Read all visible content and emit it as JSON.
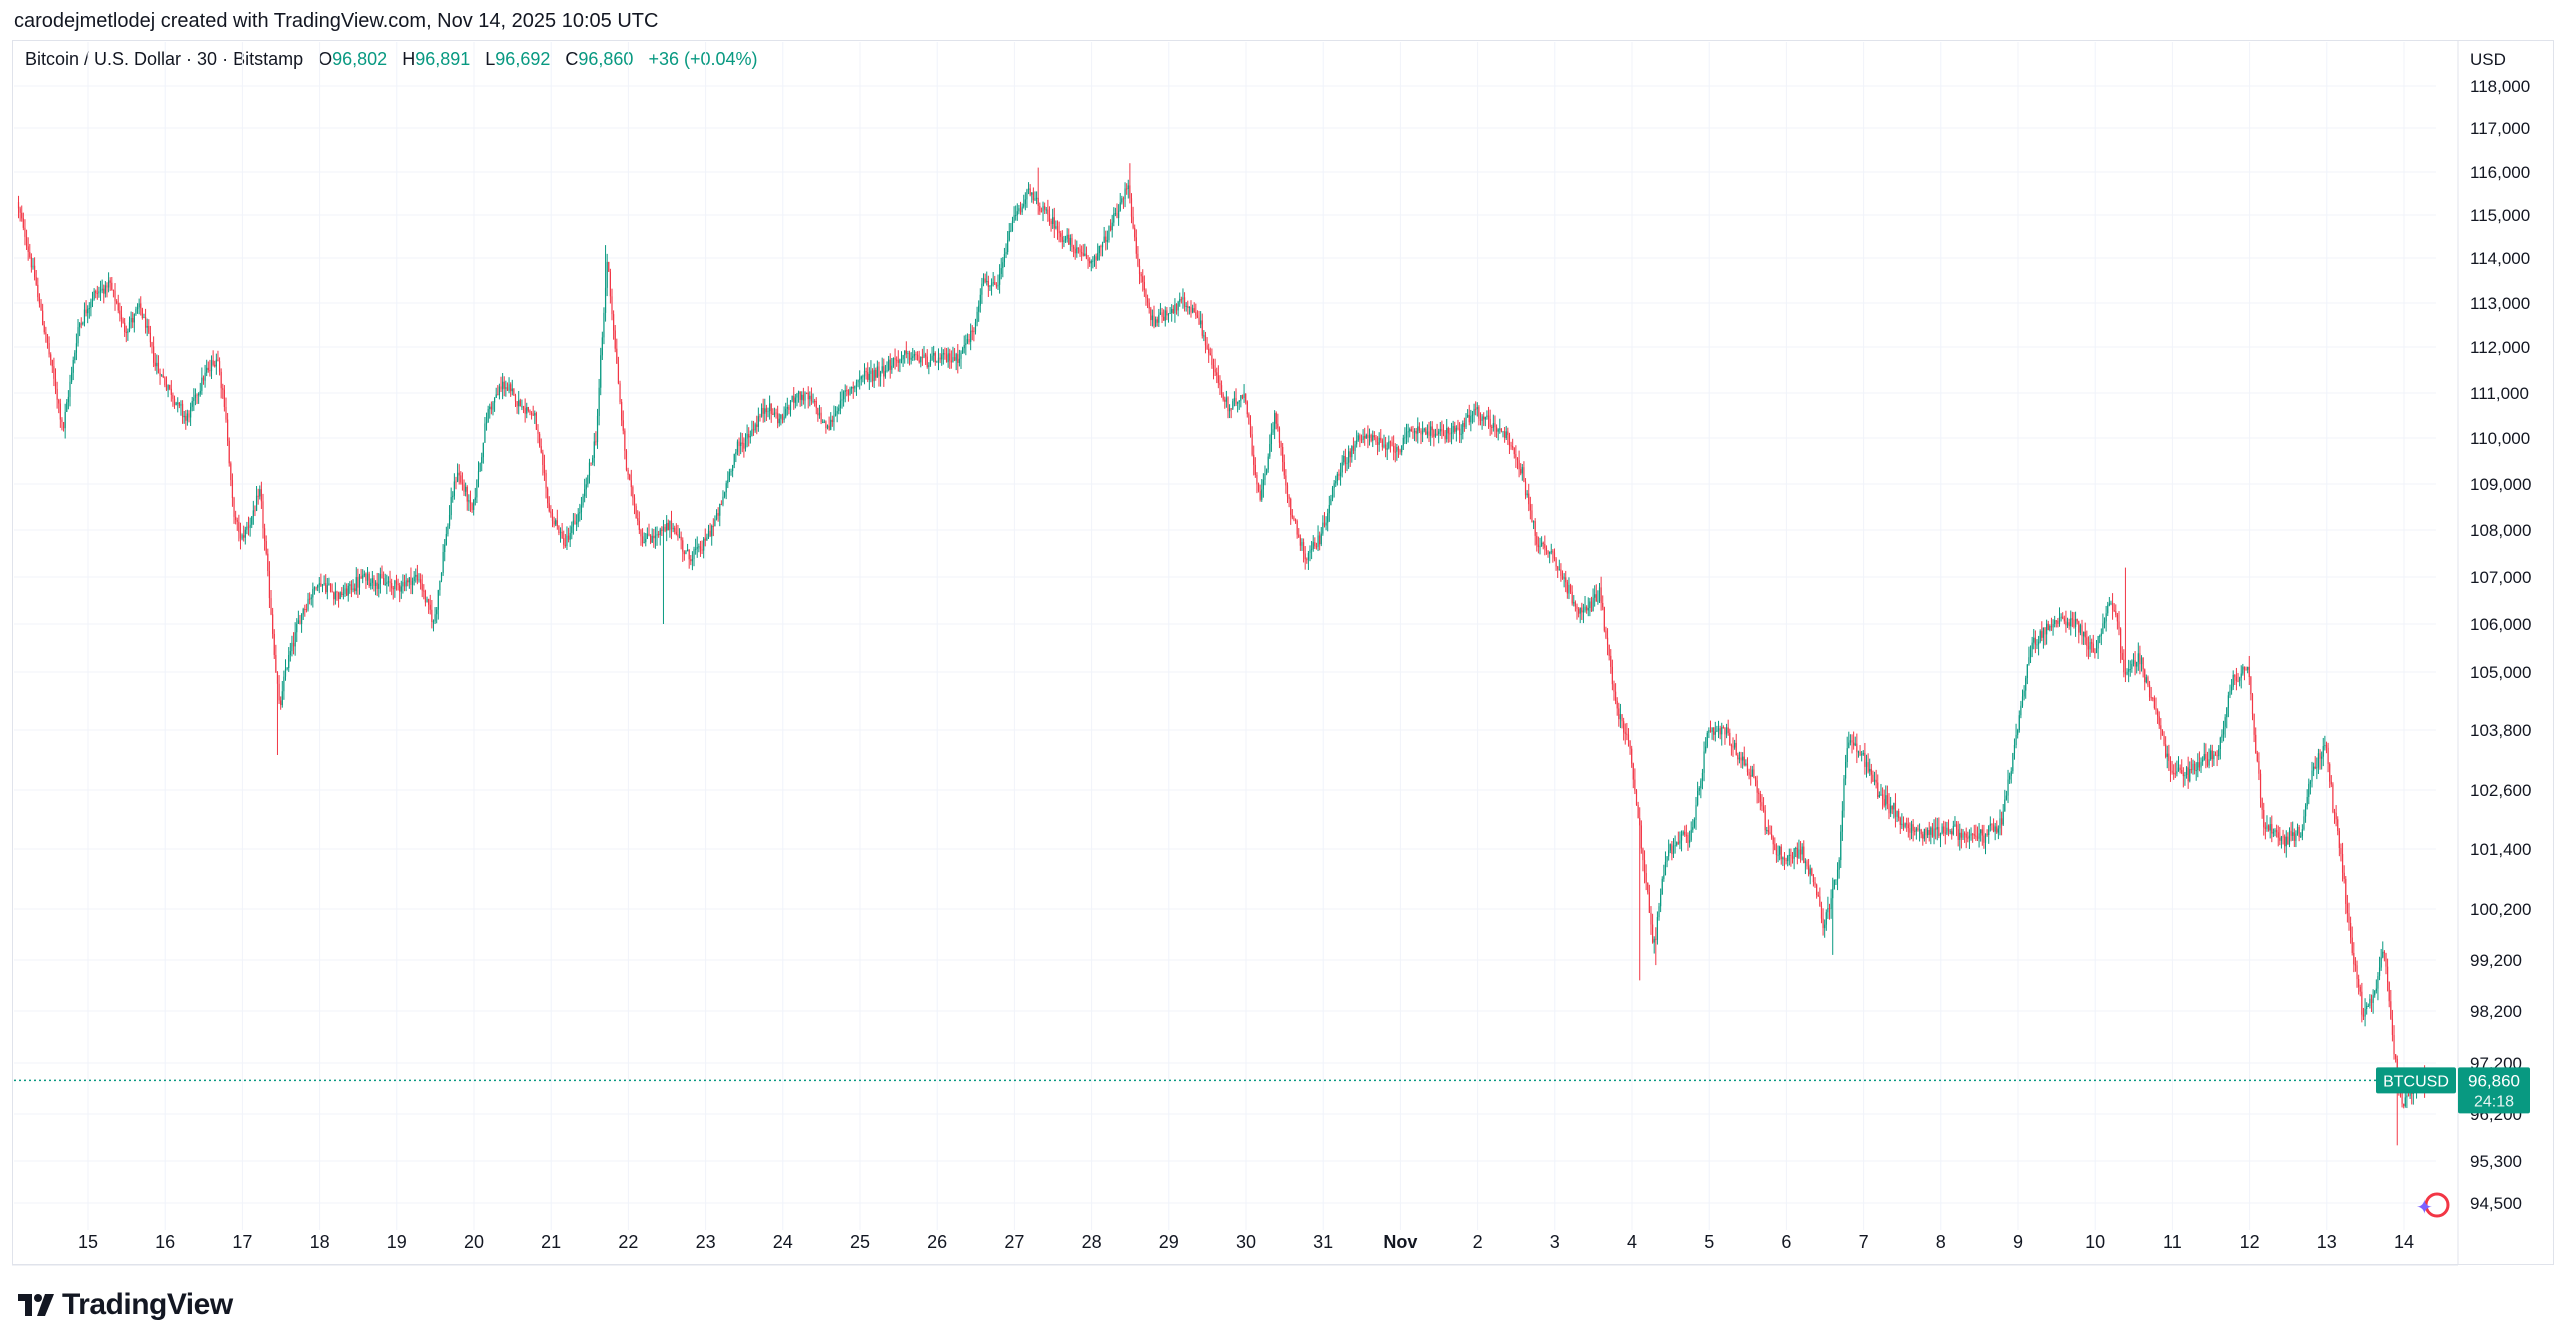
{
  "credit": "carodejmetlodej created with TradingView.com, Nov 14, 2025 10:05 UTC",
  "legend": {
    "symbol": "Bitcoin / U.S. Dollar · 30 · Bitstamp",
    "o_label": "O",
    "o": "96,802",
    "h_label": "H",
    "h": "96,891",
    "l_label": "L",
    "l": "96,692",
    "c_label": "C",
    "c": "96,860",
    "change": "+36 (+0.04%)"
  },
  "brand": "TradingView",
  "currency": "USD",
  "price_tag": {
    "symbol": "BTCUSD",
    "price": "96,860",
    "countdown": "24:18"
  },
  "colors": {
    "up": "#089981",
    "down": "#f23645",
    "grid": "#f0f3fa",
    "text": "#131722"
  },
  "chart_data": {
    "type": "candlestick",
    "title": "Bitcoin / U.S. Dollar · 30 · Bitstamp",
    "ylabel": "USD",
    "ylim": [
      94200,
      118200
    ],
    "y_ticks": [
      118000,
      117000,
      116000,
      115000,
      114000,
      113000,
      112000,
      111000,
      110000,
      109000,
      108000,
      107000,
      106000,
      105000,
      103800,
      102600,
      101400,
      100200,
      99200,
      98200,
      97200,
      96200,
      95300,
      94500
    ],
    "y_tick_labels": [
      "118,000",
      "117,000",
      "116,000",
      "115,000",
      "114,000",
      "113,000",
      "112,000",
      "111,000",
      "110,000",
      "109,000",
      "108,000",
      "107,000",
      "106,000",
      "105,000",
      "103,800",
      "102,600",
      "101,400",
      "100,200",
      "99,200",
      "98,200",
      "97,200",
      "96,200",
      "95,300",
      "94,500"
    ],
    "x_tick_labels": [
      "15",
      "16",
      "17",
      "18",
      "19",
      "20",
      "21",
      "22",
      "23",
      "24",
      "25",
      "26",
      "27",
      "28",
      "29",
      "30",
      "31",
      "Nov",
      "2",
      "3",
      "4",
      "5",
      "6",
      "7",
      "8",
      "9",
      "10",
      "11",
      "12",
      "13",
      "14"
    ],
    "x_start": 14.1,
    "x_end": 45.3,
    "last_price": 96860,
    "path": [
      [
        14.1,
        115300
      ],
      [
        14.3,
        113800
      ],
      [
        14.5,
        112000
      ],
      [
        14.7,
        110200
      ],
      [
        14.9,
        112500
      ],
      [
        15.1,
        113200
      ],
      [
        15.3,
        113400
      ],
      [
        15.5,
        112400
      ],
      [
        15.7,
        112900
      ],
      [
        15.9,
        111600
      ],
      [
        16.1,
        111000
      ],
      [
        16.3,
        110400
      ],
      [
        16.5,
        111300
      ],
      [
        16.7,
        111800
      ],
      [
        16.8,
        110600
      ],
      [
        16.9,
        108400
      ],
      [
        17.0,
        107800
      ],
      [
        17.15,
        108300
      ],
      [
        17.25,
        108800
      ],
      [
        17.35,
        107000
      ],
      [
        17.5,
        104200
      ],
      [
        17.6,
        105200
      ],
      [
        17.8,
        106300
      ],
      [
        18.0,
        106900
      ],
      [
        18.3,
        106600
      ],
      [
        18.6,
        107000
      ],
      [
        19.0,
        106800
      ],
      [
        19.3,
        107000
      ],
      [
        19.5,
        106000
      ],
      [
        19.65,
        107800
      ],
      [
        19.8,
        109300
      ],
      [
        20.0,
        108400
      ],
      [
        20.2,
        110600
      ],
      [
        20.4,
        111200
      ],
      [
        20.6,
        110800
      ],
      [
        20.8,
        110500
      ],
      [
        21.0,
        108400
      ],
      [
        21.2,
        107700
      ],
      [
        21.4,
        108400
      ],
      [
        21.6,
        110000
      ],
      [
        21.75,
        114000
      ],
      [
        21.9,
        111000
      ],
      [
        22.0,
        109300
      ],
      [
        22.2,
        107800
      ],
      [
        22.4,
        107900
      ],
      [
        22.6,
        108100
      ],
      [
        22.8,
        107400
      ],
      [
        23.0,
        107700
      ],
      [
        23.2,
        108400
      ],
      [
        23.4,
        109700
      ],
      [
        23.6,
        110100
      ],
      [
        23.8,
        110700
      ],
      [
        24.0,
        110400
      ],
      [
        24.2,
        111000
      ],
      [
        24.4,
        110800
      ],
      [
        24.6,
        110200
      ],
      [
        24.8,
        110900
      ],
      [
        25.0,
        111300
      ],
      [
        25.3,
        111500
      ],
      [
        25.6,
        111800
      ],
      [
        26.0,
        111700
      ],
      [
        26.3,
        111800
      ],
      [
        26.5,
        112400
      ],
      [
        26.6,
        113500
      ],
      [
        26.8,
        113300
      ],
      [
        27.0,
        114900
      ],
      [
        27.2,
        115500
      ],
      [
        27.4,
        115100
      ],
      [
        27.6,
        114600
      ],
      [
        27.8,
        114200
      ],
      [
        28.0,
        113900
      ],
      [
        28.2,
        114400
      ],
      [
        28.5,
        115700
      ],
      [
        28.6,
        114000
      ],
      [
        28.8,
        112600
      ],
      [
        29.0,
        112800
      ],
      [
        29.2,
        113000
      ],
      [
        29.4,
        112700
      ],
      [
        29.6,
        111500
      ],
      [
        29.8,
        110600
      ],
      [
        30.0,
        111000
      ],
      [
        30.2,
        108600
      ],
      [
        30.4,
        110500
      ],
      [
        30.6,
        108400
      ],
      [
        30.8,
        107400
      ],
      [
        31.0,
        107900
      ],
      [
        31.2,
        109200
      ],
      [
        31.4,
        109800
      ],
      [
        31.6,
        110100
      ],
      [
        31.8,
        109800
      ],
      [
        32.0,
        109800
      ],
      [
        32.2,
        110200
      ],
      [
        32.5,
        110100
      ],
      [
        32.8,
        110200
      ],
      [
        33.0,
        110600
      ],
      [
        33.2,
        110300
      ],
      [
        33.4,
        110100
      ],
      [
        33.6,
        109200
      ],
      [
        33.8,
        107700
      ],
      [
        34.0,
        107500
      ],
      [
        34.2,
        106700
      ],
      [
        34.4,
        106200
      ],
      [
        34.6,
        106700
      ],
      [
        34.8,
        104400
      ],
      [
        35.0,
        103400
      ],
      [
        35.15,
        101400
      ],
      [
        35.3,
        99400
      ],
      [
        35.45,
        101200
      ],
      [
        35.6,
        101600
      ],
      [
        35.8,
        101700
      ],
      [
        36.0,
        103700
      ],
      [
        36.2,
        103800
      ],
      [
        36.4,
        103300
      ],
      [
        36.6,
        102900
      ],
      [
        36.8,
        101600
      ],
      [
        37.0,
        101200
      ],
      [
        37.2,
        101400
      ],
      [
        37.4,
        100600
      ],
      [
        37.5,
        99800
      ],
      [
        37.7,
        101100
      ],
      [
        37.8,
        103600
      ],
      [
        38.0,
        103300
      ],
      [
        38.2,
        102600
      ],
      [
        38.4,
        102200
      ],
      [
        38.6,
        101800
      ],
      [
        38.8,
        101700
      ],
      [
        39.0,
        101800
      ],
      [
        39.2,
        101800
      ],
      [
        39.4,
        101600
      ],
      [
        39.6,
        101700
      ],
      [
        39.8,
        101900
      ],
      [
        40.0,
        103700
      ],
      [
        40.2,
        105600
      ],
      [
        40.4,
        105900
      ],
      [
        40.6,
        106100
      ],
      [
        40.8,
        106000
      ],
      [
        41.0,
        105400
      ],
      [
        41.2,
        106400
      ],
      [
        41.3,
        106200
      ],
      [
        41.4,
        104900
      ],
      [
        41.6,
        105300
      ],
      [
        41.8,
        104200
      ],
      [
        42.0,
        103000
      ],
      [
        42.2,
        102900
      ],
      [
        42.4,
        103200
      ],
      [
        42.6,
        103300
      ],
      [
        42.8,
        104900
      ],
      [
        43.0,
        105100
      ],
      [
        43.2,
        101900
      ],
      [
        43.4,
        101600
      ],
      [
        43.5,
        101600
      ],
      [
        43.7,
        101800
      ],
      [
        43.8,
        102800
      ],
      [
        44.0,
        103500
      ],
      [
        44.1,
        102300
      ],
      [
        44.2,
        101300
      ],
      [
        44.35,
        99400
      ],
      [
        44.5,
        98000
      ],
      [
        44.65,
        98600
      ],
      [
        44.75,
        99500
      ],
      [
        44.9,
        97300
      ],
      [
        45.0,
        96400
      ],
      [
        45.1,
        96600
      ],
      [
        45.2,
        96860
      ]
    ],
    "events": [
      [
        17.45,
        103300,
        "low"
      ],
      [
        21.7,
        114300,
        "high"
      ],
      [
        22.45,
        106000,
        "low"
      ],
      [
        27.3,
        116100,
        "high"
      ],
      [
        28.5,
        116200,
        "high"
      ],
      [
        35.1,
        98800,
        "low"
      ],
      [
        35.3,
        99100,
        "low"
      ],
      [
        37.6,
        99300,
        "low"
      ],
      [
        41.4,
        107200,
        "high"
      ],
      [
        44.92,
        95600,
        "low"
      ]
    ]
  }
}
